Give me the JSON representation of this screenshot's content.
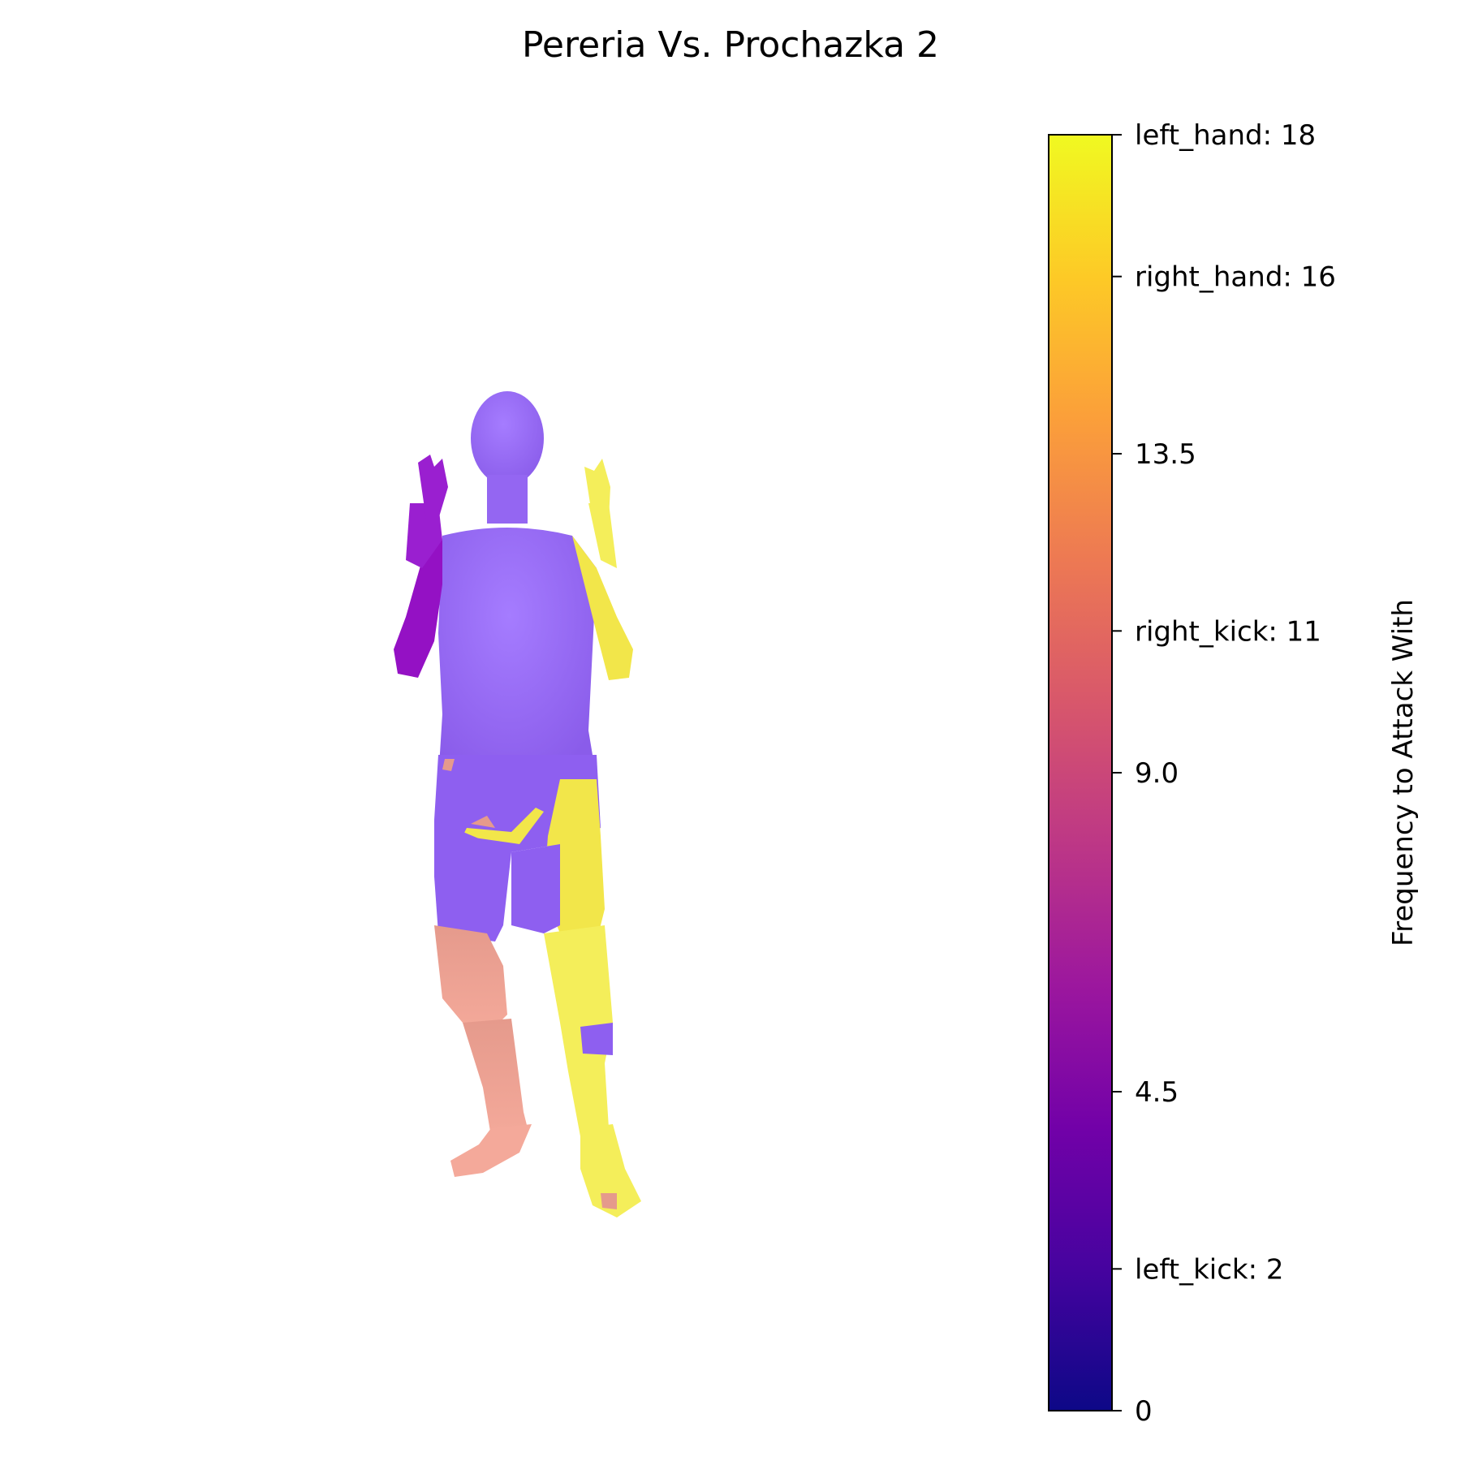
{
  "chart_data": {
    "type": "heatmap",
    "title": "Pereria Vs. Prochazka 2",
    "colormap": "plasma",
    "colorbar": {
      "label": "Frequency to Attack With",
      "range": [
        0,
        18
      ],
      "ticks": [
        {
          "value": 0,
          "label": "0"
        },
        {
          "value": 2,
          "label": "left_kick: 2"
        },
        {
          "value": 4.5,
          "label": "4.5"
        },
        {
          "value": 9.0,
          "label": "9.0"
        },
        {
          "value": 11,
          "label": "right_kick: 11"
        },
        {
          "value": 13.5,
          "label": "13.5"
        },
        {
          "value": 16,
          "label": "right_hand: 16"
        },
        {
          "value": 18,
          "label": "left_hand: 18"
        }
      ]
    },
    "body_regions": [
      {
        "name": "left_hand",
        "value": 18
      },
      {
        "name": "right_hand",
        "value": 16
      },
      {
        "name": "right_kick",
        "value": 11
      },
      {
        "name": "left_kick",
        "value": 2
      }
    ],
    "colors": {
      "base_body": "#9b6af6",
      "plasma_stops": [
        "#0d0887",
        "#46039f",
        "#7201a8",
        "#9c179e",
        "#bd3786",
        "#d8576b",
        "#ed7953",
        "#fb9f3a",
        "#fdca26",
        "#f0f921"
      ]
    }
  }
}
